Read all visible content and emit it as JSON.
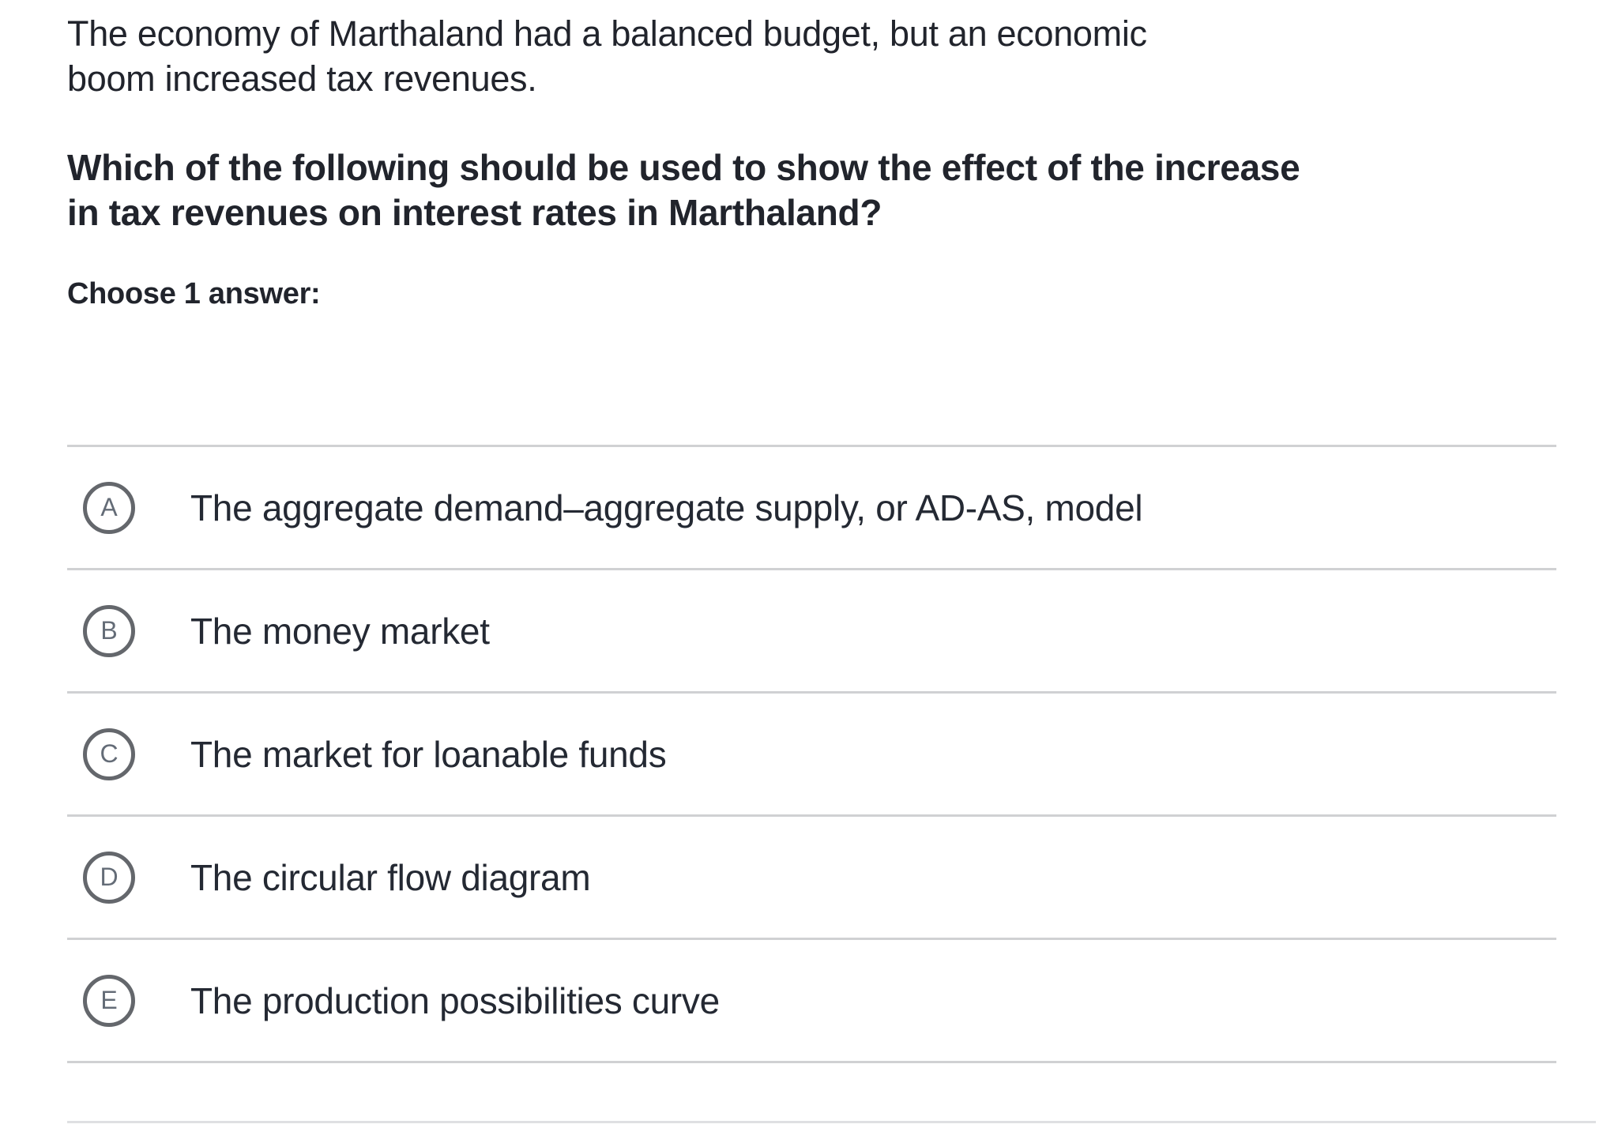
{
  "colors": {
    "text": "#21242c",
    "option_text": "#242933",
    "badge_border": "#64676c",
    "badge_letter": "#646c77",
    "divider": "#d0d1d3",
    "bottom_divider": "#dfe0e2",
    "background": "#ffffff"
  },
  "question_block": {
    "intro": "The economy of Marthaland had a balanced budget, but an economic\nboom increased tax revenues.",
    "question": "Which of the following should be used to show the effect of the increase\nin tax revenues on interest rates in Marthaland?",
    "choose_label": "Choose 1 answer:"
  },
  "options": {
    "items": [
      {
        "letter": "A",
        "label": "The aggregate demand–aggregate supply, or AD-AS, model"
      },
      {
        "letter": "B",
        "label": "The money market"
      },
      {
        "letter": "C",
        "label": "The market for loanable funds"
      },
      {
        "letter": "D",
        "label": "The circular flow diagram"
      },
      {
        "letter": "E",
        "label": "The production possibilities curve"
      }
    ]
  }
}
